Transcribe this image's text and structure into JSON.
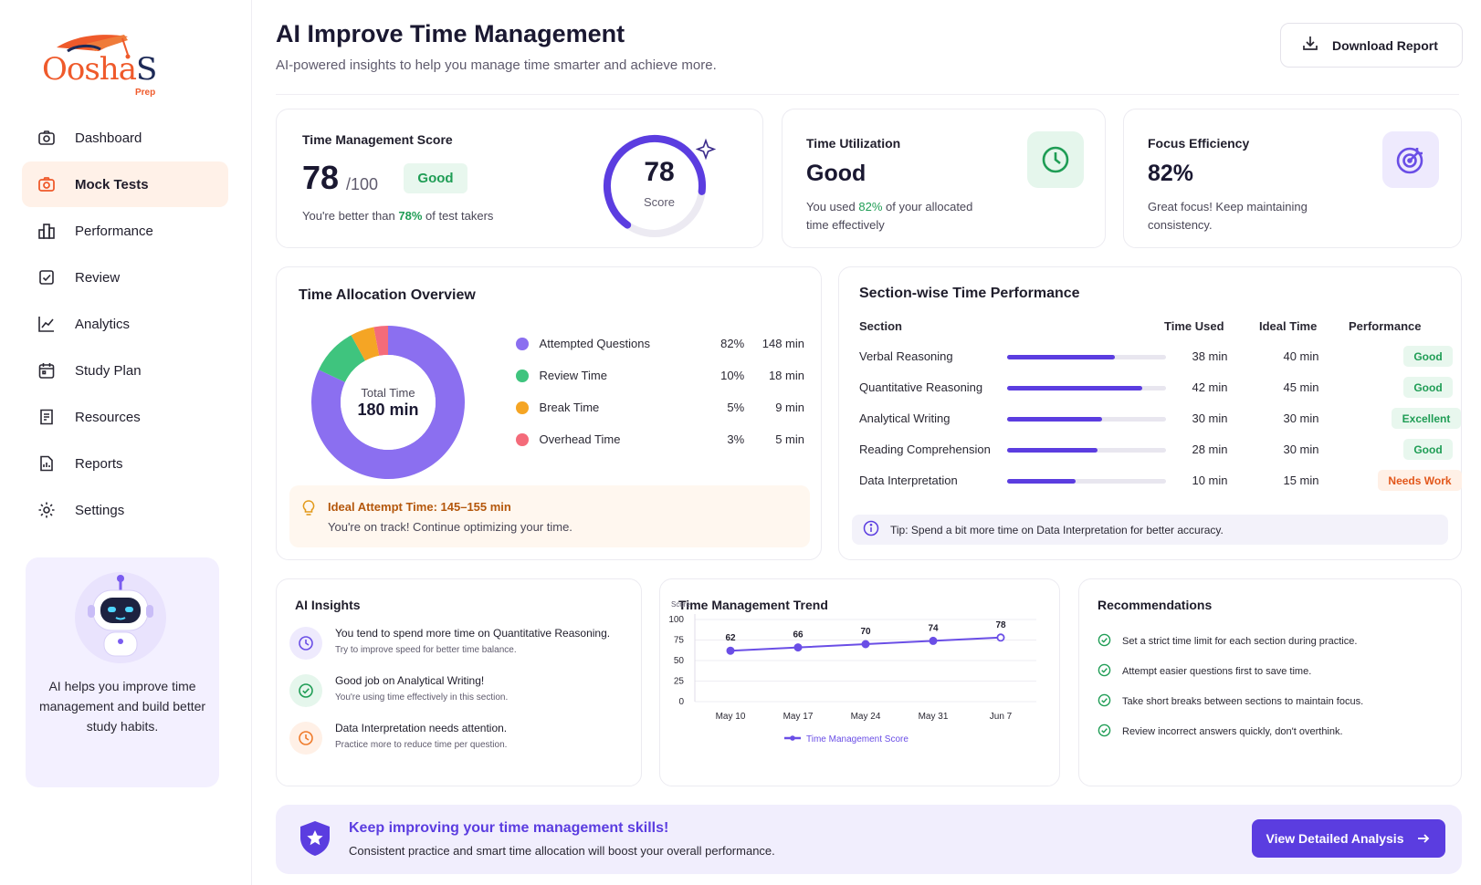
{
  "brand": {
    "logo_main": "Oosha",
    "logo_end": "S",
    "logo_sub": "Prep"
  },
  "sidebar": {
    "items": [
      {
        "label": "Dashboard",
        "icon": "camera-icon"
      },
      {
        "label": "Mock Tests",
        "icon": "camera-icon",
        "active": true
      },
      {
        "label": "Performance",
        "icon": "building-icon"
      },
      {
        "label": "Review",
        "icon": "check-square-icon"
      },
      {
        "label": "Analytics",
        "icon": "line-chart-icon"
      },
      {
        "label": "Study Plan",
        "icon": "calendar-icon"
      },
      {
        "label": "Resources",
        "icon": "book-icon"
      },
      {
        "label": "Reports",
        "icon": "report-icon"
      },
      {
        "label": "Settings",
        "icon": "gear-icon"
      }
    ],
    "ai_card": {
      "text": "AI helps you improve time management and build better study habits."
    }
  },
  "header": {
    "title": "AI Improve Time Management",
    "subtitle": "AI-powered insights to help you manage time smarter and achieve more.",
    "download_label": "Download Report"
  },
  "score_card": {
    "title": "Time Management Score",
    "score": "78",
    "out_of": "/100",
    "badge": "Good",
    "note_prefix": "You're better than ",
    "note_highlight": "78%",
    "note_suffix": " of test takers",
    "gauge_value": "78",
    "gauge_label": "Score",
    "gauge_fraction": 0.78
  },
  "utilization_card": {
    "title": "Time Utilization",
    "value": "Good",
    "note_prefix": "You used ",
    "note_highlight": "82%",
    "note_suffix": " of your allocated time effectively"
  },
  "focus_card": {
    "title": "Focus Efficiency",
    "value": "82%",
    "note": "Great focus! Keep maintaining consistency."
  },
  "allocation": {
    "title": "Time Allocation Overview",
    "center_label": "Total Time",
    "center_value": "180 min",
    "items": [
      {
        "label": "Attempted Questions",
        "percent": "82%",
        "minutes": "148 min",
        "color": "#8b6ff0",
        "value": 82
      },
      {
        "label": "Review Time",
        "percent": "10%",
        "minutes": "18 min",
        "color": "#3fc47e",
        "value": 10
      },
      {
        "label": "Break Time",
        "percent": "5%",
        "minutes": "9 min",
        "color": "#f5a524",
        "value": 5
      },
      {
        "label": "Overhead Time",
        "percent": "3%",
        "minutes": "5 min",
        "color": "#f46b7a",
        "value": 3
      }
    ],
    "ideal_title": "Ideal Attempt Time: 145–155 min",
    "ideal_sub": "You're on track! Continue optimizing your time."
  },
  "sections": {
    "title": "Section-wise Time Performance",
    "headers": {
      "section": "Section",
      "used": "Time Used",
      "ideal": "Ideal Time",
      "performance": "Performance"
    },
    "rows": [
      {
        "name": "Verbal Reasoning",
        "used": "38 min",
        "ideal": "40 min",
        "performance": "Good",
        "fill": 0.68,
        "kind": "good"
      },
      {
        "name": "Quantitative Reasoning",
        "used": "42 min",
        "ideal": "45 min",
        "performance": "Good",
        "fill": 0.85,
        "kind": "good"
      },
      {
        "name": "Analytical Writing",
        "used": "30 min",
        "ideal": "30 min",
        "performance": "Excellent",
        "fill": 0.6,
        "kind": "exc"
      },
      {
        "name": "Reading Comprehension",
        "used": "28 min",
        "ideal": "30 min",
        "performance": "Good",
        "fill": 0.57,
        "kind": "good"
      },
      {
        "name": "Data Interpretation",
        "used": "10 min",
        "ideal": "15 min",
        "performance": "Needs Work",
        "fill": 0.43,
        "kind": "need"
      }
    ],
    "tip": "Tip: Spend a bit more time on Data Interpretation for better accuracy."
  },
  "insights": {
    "title": "AI Insights",
    "items": [
      {
        "title": "You tend to spend more time on Quantitative Reasoning.",
        "sub": "Try to improve speed for better time balance.",
        "icon": "clock-icon",
        "bg": "#eeeafd",
        "fg": "#6a4ee6"
      },
      {
        "title": "Good job on Analytical Writing!",
        "sub": "You're using time effectively in this section.",
        "icon": "check-circle-icon",
        "bg": "#e5f6ec",
        "fg": "#1f9d55"
      },
      {
        "title": "Data Interpretation needs attention.",
        "sub": "Practice more to reduce time per question.",
        "icon": "clock-icon",
        "bg": "#fff0e6",
        "fg": "#ef7b2b"
      }
    ]
  },
  "trend": {
    "title": "Time Management Trend"
  },
  "chart_data": {
    "type": "line",
    "title": "Time Management Trend",
    "ylabel": "Score",
    "categories": [
      "May 10",
      "May 17",
      "May 24",
      "May 31",
      "Jun  7"
    ],
    "yticks": [
      "0",
      "25",
      "50",
      "75",
      "100"
    ],
    "ylim": [
      0,
      100
    ],
    "series": [
      {
        "name": "Time Management Score",
        "values": [
          62,
          66,
          70,
          74,
          78
        ],
        "color": "#6a4ee6"
      }
    ],
    "legend": "bottom",
    "grid": true
  },
  "recommendations": {
    "title": "Recommendations",
    "items": [
      "Set a strict time limit for each section during practice.",
      "Attempt easier questions first to save time.",
      "Take short breaks between sections to maintain focus.",
      "Review incorrect answers quickly, don't overthink."
    ]
  },
  "banner": {
    "title": "Keep improving your time management skills!",
    "subtitle": "Consistent practice and smart time allocation will boost your overall performance.",
    "cta": "View Detailed Analysis"
  }
}
